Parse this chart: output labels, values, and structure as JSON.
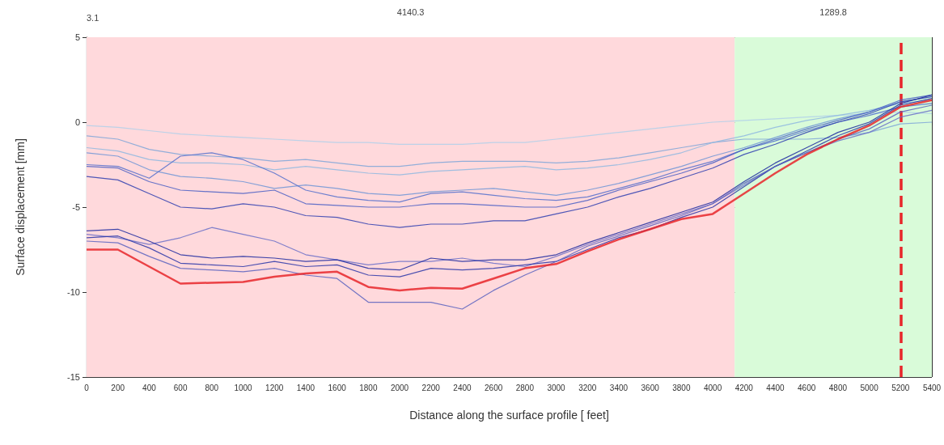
{
  "chart_data": {
    "type": "line",
    "xlabel": "Distance along the surface profile [ feet]",
    "ylabel": "Surface displacement [mm]",
    "x": [
      0,
      200,
      400,
      600,
      800,
      1000,
      1200,
      1400,
      1600,
      1800,
      2000,
      2200,
      2400,
      2600,
      2800,
      3000,
      3200,
      3400,
      3600,
      3800,
      4000,
      4200,
      4400,
      4600,
      4800,
      5000,
      5200,
      5400
    ],
    "xlim": [
      0,
      5400
    ],
    "xticks": [
      0,
      200,
      400,
      600,
      800,
      1000,
      1200,
      1400,
      1600,
      1800,
      2000,
      2200,
      2400,
      2600,
      2800,
      3000,
      3200,
      3400,
      3600,
      3800,
      4000,
      4200,
      4400,
      4600,
      4800,
      5000,
      5200,
      5400
    ],
    "ylim": [
      -15,
      5
    ],
    "yticks": [
      -15,
      -10,
      -5,
      0,
      5
    ],
    "grid": true,
    "marker": "none",
    "line_style": "solid",
    "annotations": [
      "3.1"
    ],
    "bands": [
      {
        "axis": "x",
        "from": 0,
        "to": 4140.3,
        "label": "4140.3",
        "color": "#ffd9dc"
      },
      {
        "axis": "x",
        "from": 4140.3,
        "to": 5400,
        "label": "1289.8",
        "color": "#d9fbd9"
      }
    ],
    "ref_lines": [
      {
        "axis": "x",
        "value": 5200,
        "color": "#e8262a",
        "line_style": "dashed"
      }
    ],
    "series": [
      {
        "color": "#b0d0ea",
        "values": [
          -0.2,
          -0.3,
          -0.5,
          -0.7,
          -0.8,
          -0.9,
          -1.0,
          -1.1,
          -1.2,
          -1.2,
          -1.3,
          -1.3,
          -1.3,
          -1.2,
          -1.2,
          -1.0,
          -0.8,
          -0.6,
          -0.4,
          -0.2,
          0,
          0.1,
          0.2,
          0.3,
          0.4,
          0.5,
          0.6,
          0.5
        ]
      },
      {
        "color": "#7fa6d8",
        "values": [
          -0.8,
          -1.0,
          -1.6,
          -1.9,
          -2.0,
          -2.1,
          -2.3,
          -2.2,
          -2.4,
          -2.6,
          -2.6,
          -2.4,
          -2.3,
          -2.3,
          -2.3,
          -2.4,
          -2.3,
          -2.1,
          -1.8,
          -1.5,
          -1.2,
          -1.0,
          -1.0,
          -1.0,
          -0.9,
          -0.6,
          -0.1,
          0.0
        ]
      },
      {
        "color": "#8fb8e0",
        "values": [
          -1.5,
          -1.7,
          -2.2,
          -2.4,
          -2.4,
          -2.5,
          -2.8,
          -2.6,
          -2.8,
          -3.0,
          -3.1,
          -2.9,
          -2.8,
          -2.7,
          -2.6,
          -2.8,
          -2.7,
          -2.5,
          -2.2,
          -1.8,
          -1.2,
          -0.8,
          -0.3,
          0.1,
          0.4,
          0.7,
          1.1,
          1.3
        ]
      },
      {
        "color": "#6f95d6",
        "values": [
          -1.8,
          -2.0,
          -2.8,
          -3.2,
          -3.3,
          -3.5,
          -3.9,
          -3.7,
          -3.9,
          -4.2,
          -4.3,
          -4.1,
          -4.0,
          -3.9,
          -4.1,
          -4.3,
          -4.0,
          -3.6,
          -3.1,
          -2.6,
          -2.0,
          -1.5,
          -0.9,
          -0.3,
          0.2,
          0.6,
          1.2,
          1.5
        ]
      },
      {
        "color": "#5570cc",
        "values": [
          -2.5,
          -2.6,
          -3.3,
          -2.0,
          -1.8,
          -2.2,
          -3.0,
          -4.0,
          -4.4,
          -4.6,
          -4.7,
          -4.2,
          -4.1,
          -4.3,
          -4.5,
          -4.6,
          -4.4,
          -3.9,
          -3.4,
          -2.8,
          -2.3,
          -1.6,
          -1.1,
          -0.5,
          0,
          0.4,
          0.9,
          1.1
        ]
      },
      {
        "color": "#4a5fc4",
        "values": [
          -2.6,
          -2.7,
          -3.5,
          -4.0,
          -4.1,
          -4.2,
          -4.0,
          -4.8,
          -4.9,
          -5.0,
          -5.0,
          -4.8,
          -4.8,
          -4.9,
          -5.0,
          -5.0,
          -4.6,
          -4.0,
          -3.5,
          -3.0,
          -2.4,
          -1.6,
          -1.0,
          -0.4,
          0.1,
          0.6,
          1.3,
          1.6
        ]
      },
      {
        "color": "#3040b0",
        "values": [
          -3.2,
          -3.4,
          -4.2,
          -5.0,
          -5.1,
          -4.8,
          -5.0,
          -5.5,
          -5.6,
          -6.0,
          -6.2,
          -6.0,
          -6.0,
          -5.8,
          -5.8,
          -5.4,
          -5.0,
          -4.4,
          -3.9,
          -3.3,
          -2.7,
          -1.9,
          -1.3,
          -0.6,
          0,
          0.5,
          1.2,
          1.5
        ]
      },
      {
        "color": "#6b70c8",
        "values": [
          -6.6,
          -6.8,
          -7.2,
          -6.8,
          -6.2,
          -6.6,
          -7.0,
          -7.8,
          -8.1,
          -8.4,
          -8.2,
          -8.2,
          -8.0,
          -8.3,
          -8.5,
          -7.9,
          -7.2,
          -6.6,
          -6.0,
          -5.4,
          -4.8,
          -3.7,
          -2.6,
          -1.8,
          -1.1,
          -0.6,
          0.3,
          0.7
        ]
      },
      {
        "color": "#1f2aa0",
        "values": [
          -6.4,
          -6.3,
          -7.0,
          -7.8,
          -8.0,
          -7.9,
          -8.0,
          -8.2,
          -8.1,
          -8.6,
          -8.7,
          -8.0,
          -8.2,
          -8.1,
          -8.1,
          -7.8,
          -7.1,
          -6.5,
          -5.9,
          -5.3,
          -4.7,
          -3.5,
          -2.4,
          -1.5,
          -0.6,
          0.0,
          1.1,
          1.6
        ]
      },
      {
        "color": "#2a36a8",
        "values": [
          -6.8,
          -6.7,
          -7.4,
          -8.3,
          -8.4,
          -8.5,
          -8.2,
          -8.5,
          -8.4,
          -9.0,
          -9.1,
          -8.6,
          -8.7,
          -8.6,
          -8.4,
          -8.2,
          -7.5,
          -6.8,
          -6.3,
          -5.6,
          -5.0,
          -3.8,
          -2.6,
          -1.7,
          -0.8,
          -0.1,
          1.0,
          1.4
        ]
      },
      {
        "color": "#5a63c0",
        "values": [
          -7.0,
          -7.1,
          -7.9,
          -8.6,
          -8.7,
          -8.8,
          -8.6,
          -9.0,
          -9.2,
          -10.6,
          -10.6,
          -10.6,
          -11.0,
          -9.9,
          -9.0,
          -8.2,
          -7.3,
          -6.7,
          -6.1,
          -5.5,
          -4.8,
          -3.6,
          -2.6,
          -1.8,
          -1.0,
          -0.4,
          0.6,
          1.0
        ]
      },
      {
        "color": "#e8262a",
        "values": [
          -7.5,
          -7.5,
          -8.5,
          -9.5,
          -9.45,
          -9.4,
          -9.1,
          -8.9,
          -8.8,
          -9.7,
          -9.9,
          -9.75,
          -9.8,
          -9.2,
          -8.6,
          -8.35,
          -7.6,
          -6.9,
          -6.3,
          -5.7,
          -5.4,
          -4.2,
          -3.0,
          -1.9,
          -1.0,
          -0.2,
          0.9,
          1.3
        ]
      }
    ]
  }
}
